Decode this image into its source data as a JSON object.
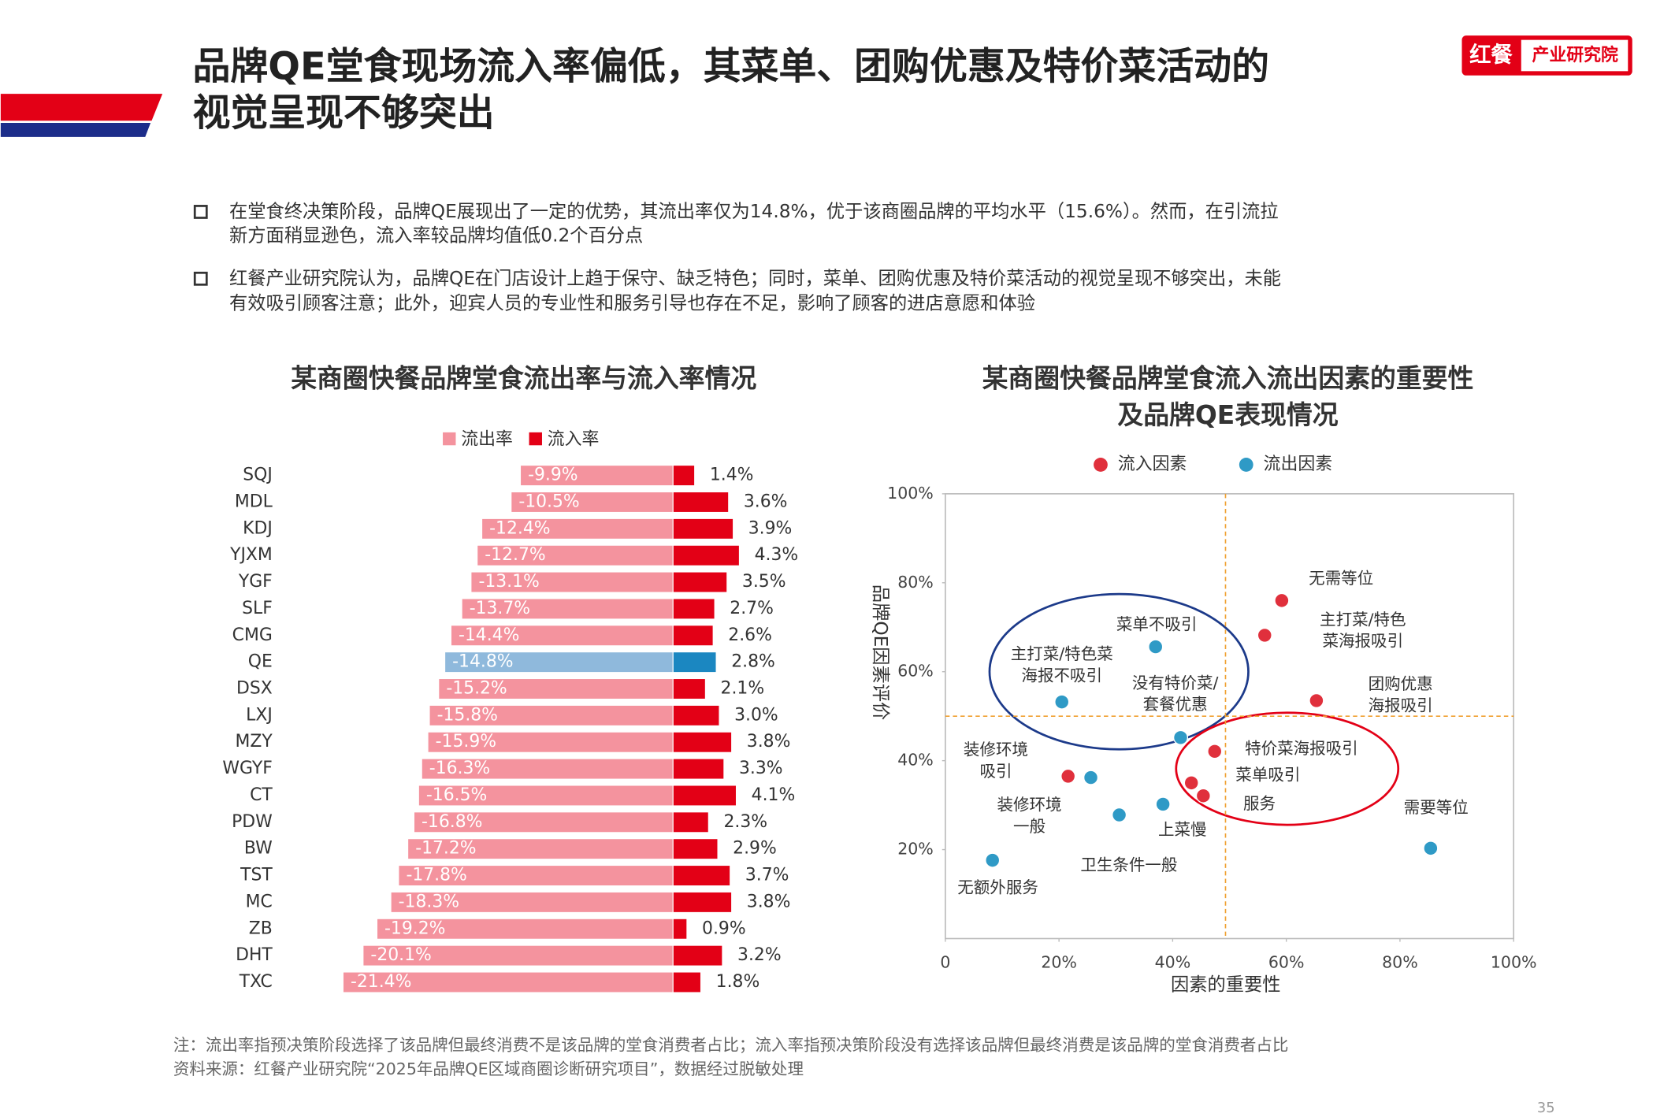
{
  "header": {
    "title": [
      "品牌QE堂食现场流入率偏低，其菜单、团购优惠及特价菜活动的",
      "视觉呈现不够突出"
    ],
    "logo": [
      "红餐",
      "产业研究院"
    ]
  },
  "bullets": [
    [
      "在堂食终决策阶段，品牌QE展现出了一定的优势，其流出率仅为14.8%，优于该商圈品牌的平均水平（15.6%）。然而，在引流拉",
      "新方面稍显逊色，流入率较品牌均值低0.2个百分点"
    ],
    [
      "红餐产业研究院认为，品牌QE在门店设计上趋于保守、缺乏特色；同时，菜单、团购优惠及特价菜活动的视觉呈现不够突出，未能",
      "有效吸引顾客注意；此外，迎宾人员的专业性和服务引导也存在不足，影响了顾客的进店意愿和体验"
    ]
  ],
  "chart_data": [
    {
      "type": "diverging-bar",
      "title": "某商圈快餐品牌堂食流出率与流入率情况",
      "categories": [
        "SQJ",
        "MDL",
        "KDJ",
        "YJXM",
        "YGF",
        "SLF",
        "CMG",
        "QE",
        "DSX",
        "LXJ",
        "MZY",
        "WGYF",
        "CT",
        "PDW",
        "BW",
        "TST",
        "MC",
        "ZB",
        "DHT",
        "TXC"
      ],
      "highlight_category": "QE",
      "series": [
        {
          "name": "流出率",
          "color": "#f4939e",
          "highlight_color": "#8fb9dc",
          "values": [
            -9.9,
            -10.5,
            -12.4,
            -12.7,
            -13.1,
            -13.7,
            -14.4,
            -14.8,
            -15.2,
            -15.8,
            -15.9,
            -16.3,
            -16.5,
            -16.8,
            -17.2,
            -17.8,
            -18.3,
            -19.2,
            -20.1,
            -21.4
          ],
          "value_labels": [
            "-9.9%",
            "-10.5%",
            "-12.4%",
            "-12.7%",
            "-13.1%",
            "-13.7%",
            "-14.4%",
            "-14.8%",
            "-15.2%",
            "-15.8%",
            "-15.9%",
            "-16.3%",
            "-16.5%",
            "-16.8%",
            "-17.2%",
            "-17.8%",
            "-18.3%",
            "-19.2%",
            "-20.1%",
            "-21.4%"
          ]
        },
        {
          "name": "流入率",
          "color": "#e30016",
          "highlight_color": "#1b87c1",
          "values": [
            1.4,
            3.6,
            3.9,
            4.3,
            3.5,
            2.7,
            2.6,
            2.8,
            2.1,
            3.0,
            3.8,
            3.3,
            4.1,
            2.3,
            2.9,
            3.7,
            3.8,
            0.9,
            3.2,
            1.8
          ],
          "value_labels": [
            "1.4%",
            "3.6%",
            "3.9%",
            "4.3%",
            "3.5%",
            "2.7%",
            "2.6%",
            "2.8%",
            "2.1%",
            "3.0%",
            "3.8%",
            "3.3%",
            "4.1%",
            "2.3%",
            "2.9%",
            "3.7%",
            "3.8%",
            "0.9%",
            "3.2%",
            "1.8%"
          ]
        }
      ]
    },
    {
      "type": "scatter",
      "title": [
        "某商圈快餐品牌堂食流入流出因素的重要性",
        "及品牌QE表现情况"
      ],
      "x_label": "因素的重要性",
      "y_label": "品牌QE因素评价",
      "xlim": [
        0,
        100
      ],
      "ylim": [
        0,
        100
      ],
      "xticks": [
        0,
        {
          "value": 20,
          "label": "20%"
        },
        {
          "value": 40,
          "label": "40%"
        },
        {
          "value": 60,
          "label": "60%"
        },
        {
          "value": 80,
          "label": "80%"
        },
        {
          "value": 100,
          "label": "100%"
        }
      ],
      "yticks": [
        {
          "value": 20,
          "label": "20%"
        },
        {
          "value": 40,
          "label": "40%"
        },
        {
          "value": 60,
          "label": "60%"
        },
        {
          "value": 80,
          "label": "80%"
        },
        {
          "value": 100,
          "label": "100%"
        }
      ],
      "reference_lines": {
        "x": 49.3,
        "y": 50,
        "color": "#f0a030"
      },
      "series": [
        {
          "name": "流入因素",
          "color": "#e0303c",
          "x": [
            59.2,
            56.2,
            65.3,
            47.4,
            43.3,
            45.4,
            21.6
          ],
          "values": [
            76.0,
            68.2,
            53.5,
            42.1,
            35.0,
            32.1,
            36.5
          ],
          "labels": [
            [
              "无需等位"
            ],
            [
              "主打菜/特色",
              "菜海报吸引"
            ],
            [
              "团购优惠",
              "海报吸引"
            ],
            [
              "特价菜海报吸引"
            ],
            [
              "菜单吸引"
            ],
            [
              "服务"
            ],
            [
              "装修环境",
              "吸引"
            ]
          ]
        },
        {
          "name": "流出因素",
          "color": "#2f9ac6",
          "x": [
            37.0,
            20.5,
            41.4,
            25.6,
            30.6,
            38.3,
            85.4,
            8.3
          ],
          "values": [
            65.6,
            53.2,
            45.2,
            36.2,
            27.8,
            30.2,
            20.3,
            17.6
          ],
          "labels": [
            [
              "菜单不吸引"
            ],
            [
              "主打菜/特色菜",
              "海报不吸引"
            ],
            [
              "没有特价菜/",
              "套餐优惠"
            ],
            [
              "装修环境",
              "一般"
            ],
            [
              "卫生条件一般"
            ],
            [
              "上菜慢"
            ],
            [
              "需要等位"
            ],
            [
              "无额外服务"
            ]
          ]
        }
      ]
    }
  ],
  "notes": [
    "注：流出率指预决策阶段选择了该品牌但最终消费不是该品牌的堂食消费者占比；流入率指预决策阶段没有选择该品牌但最终消费是该品牌的堂食消费者占比",
    "资料来源：红餐产业研究院“2025年品牌QE区域商圈诊断研究项目”，数据经过脱敏处理"
  ],
  "page_number": "35"
}
